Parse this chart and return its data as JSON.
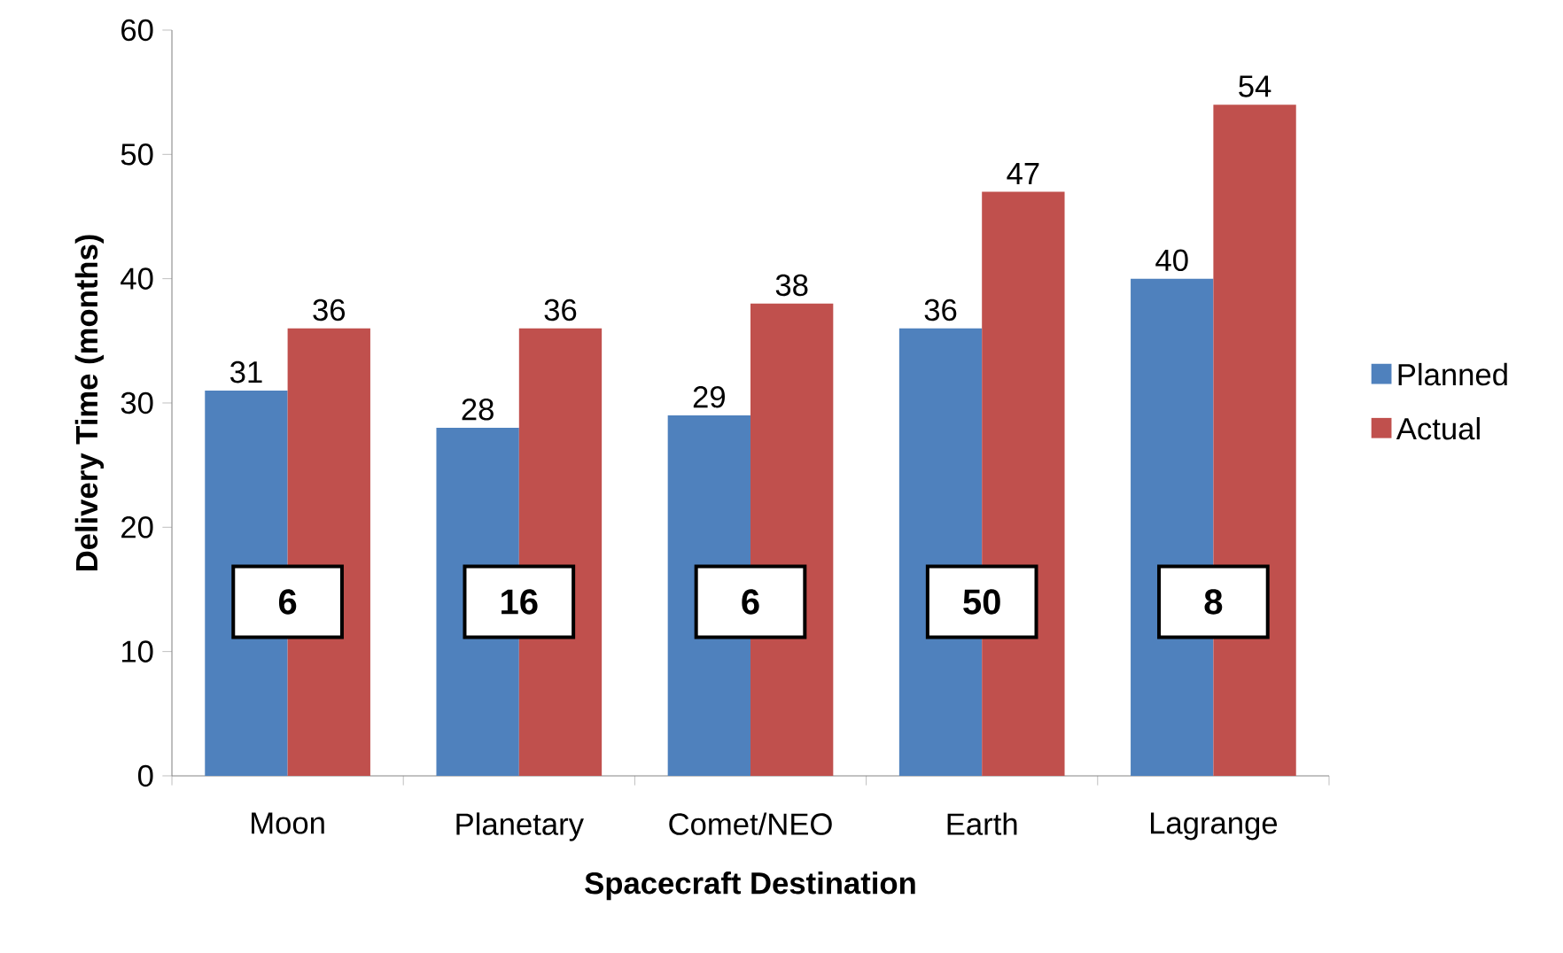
{
  "chart_data": {
    "type": "bar",
    "xlabel": "Spacecraft Destination",
    "ylabel": "Delivery Time (months)",
    "categories": [
      "Moon",
      "Planetary",
      "Comet/NEO",
      "Earth",
      "Lagrange"
    ],
    "series": [
      {
        "name": "Planned",
        "color": "#4f81bd",
        "values": [
          31,
          28,
          29,
          36,
          40
        ]
      },
      {
        "name": "Actual",
        "color": "#c0504d",
        "values": [
          36,
          36,
          38,
          47,
          54
        ]
      }
    ],
    "ylim": [
      0,
      60
    ],
    "yticks": [
      0,
      10,
      20,
      30,
      40,
      50,
      60
    ],
    "data_labels": true,
    "grid": false,
    "legend": "right",
    "annotations": [
      {
        "text": "6",
        "x": "Moon",
        "y": 14
      },
      {
        "text": "16",
        "x": "Planetary",
        "y": 14
      },
      {
        "text": "6",
        "x": "Comet/NEO",
        "y": 14
      },
      {
        "text": "50",
        "x": "Earth",
        "y": 14
      },
      {
        "text": "8",
        "x": "Lagrange",
        "y": 14
      }
    ]
  }
}
